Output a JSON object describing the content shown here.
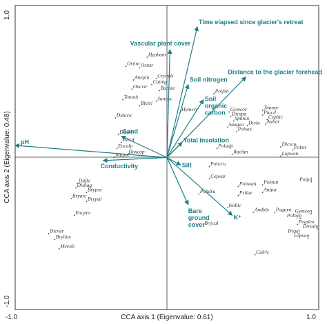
{
  "chart_data": {
    "type": "scatter",
    "subtype": "CCA biplot",
    "xlabel": "CCA axis 1 (Eigenvalue: 0.61)",
    "ylabel": "CCA axis 2 (Eigenvalue: 0.48)",
    "xlim": [
      -1.0,
      1.0
    ],
    "ylim": [
      -1.0,
      1.0
    ],
    "x_ticks": [
      "-1.0",
      "1.0"
    ],
    "y_ticks": [
      "-1.0",
      "1.0"
    ],
    "grid": false,
    "colors": {
      "arrows": "#1d7f86",
      "species": "#333333",
      "frame": "#333333"
    },
    "environmental_vectors": [
      {
        "name": "Time elapsed since glacier's retreat",
        "x": 0.2,
        "y": 0.86
      },
      {
        "name": "Vascular plant cover",
        "x": 0.02,
        "y": 0.71
      },
      {
        "name": "Distance to the glacier forehead",
        "x": 0.52,
        "y": 0.53
      },
      {
        "name": "Soil nitrogen",
        "x": 0.14,
        "y": 0.48
      },
      {
        "name": "Soil organic carbon",
        "x": 0.24,
        "y": 0.38
      },
      {
        "name": "Total insolation",
        "x": 0.1,
        "y": 0.1
      },
      {
        "name": "pH",
        "x": -1.0,
        "y": 0.08
      },
      {
        "name": "Sand",
        "x": -0.3,
        "y": 0.14
      },
      {
        "name": "Conductivity",
        "x": -0.42,
        "y": -0.02
      },
      {
        "name": "Silt",
        "x": 0.09,
        "y": -0.05
      },
      {
        "name": "K⁺",
        "x": 0.43,
        "y": -0.38
      },
      {
        "name": "Bare ground cover",
        "x": 0.14,
        "y": -0.31
      }
    ],
    "species": [
      {
        "name": "Hypbam",
        "x": -0.13,
        "y": 0.66
      },
      {
        "name": "Ortint",
        "x": -0.27,
        "y": 0.6
      },
      {
        "name": "Ortstr",
        "x": -0.18,
        "y": 0.59
      },
      {
        "name": "Cryimb",
        "x": -0.07,
        "y": 0.52
      },
      {
        "name": "Anepin",
        "x": -0.22,
        "y": 0.51
      },
      {
        "name": "Catnig",
        "x": -0.1,
        "y": 0.48
      },
      {
        "name": "Oncvir",
        "x": -0.23,
        "y": 0.45
      },
      {
        "name": "Barhat",
        "x": -0.05,
        "y": 0.44
      },
      {
        "name": "Poljun",
        "x": 0.31,
        "y": 0.42
      },
      {
        "name": "Tomnit",
        "x": -0.29,
        "y": 0.38
      },
      {
        "name": "Sanunc",
        "x": -0.07,
        "y": 0.37
      },
      {
        "name": "Bletri",
        "x": -0.18,
        "y": 0.34
      },
      {
        "name": "Hymcri",
        "x": 0.09,
        "y": 0.3
      },
      {
        "name": "Timnor",
        "x": 0.63,
        "y": 0.31
      },
      {
        "name": "Gymcor",
        "x": 0.41,
        "y": 0.3
      },
      {
        "name": "Ptucil",
        "x": 0.63,
        "y": 0.28
      },
      {
        "name": "Dicspa",
        "x": 0.42,
        "y": 0.27
      },
      {
        "name": "Cepbic",
        "x": 0.66,
        "y": 0.25
      },
      {
        "name": "Sphnin",
        "x": 0.44,
        "y": 0.24
      },
      {
        "name": "Aultur",
        "x": 0.65,
        "y": 0.22
      },
      {
        "name": "Didacu",
        "x": -0.34,
        "y": 0.26
      },
      {
        "name": "Dicla",
        "x": 0.53,
        "y": 0.21
      },
      {
        "name": "Sangeo",
        "x": 0.4,
        "y": 0.2
      },
      {
        "name": "Polsex",
        "x": 0.46,
        "y": 0.17
      },
      {
        "name": "Disinc",
        "x": -0.32,
        "y": 0.15
      },
      {
        "name": "Ditcil",
        "x": -0.3,
        "y": 0.1
      },
      {
        "name": "Encalp",
        "x": -0.33,
        "y": 0.06
      },
      {
        "name": "Doxcap",
        "x": -0.26,
        "y": 0.02
      },
      {
        "name": "Junpol",
        "x": -0.35,
        "y": 0.0
      },
      {
        "name": "Poladp",
        "x": 0.33,
        "y": 0.06
      },
      {
        "name": "Dicsco",
        "x": 0.75,
        "y": 0.07
      },
      {
        "name": "Raclan",
        "x": 0.43,
        "y": 0.02
      },
      {
        "name": "Polstr",
        "x": 0.83,
        "y": 0.05
      },
      {
        "name": "Lopwen",
        "x": 0.75,
        "y": 0.01
      },
      {
        "name": "Pohcru",
        "x": 0.28,
        "y": -0.06
      },
      {
        "name": "Cepvar",
        "x": 0.28,
        "y": -0.14
      },
      {
        "name": "Polpil",
        "x": 0.95,
        "y": -0.16
      },
      {
        "name": "Poknut",
        "x": 0.63,
        "y": -0.18
      },
      {
        "name": "Pohwah",
        "x": 0.47,
        "y": -0.19
      },
      {
        "name": "Ditfle",
        "x": -0.59,
        "y": -0.17
      },
      {
        "name": "Dishag",
        "x": -0.6,
        "y": -0.2
      },
      {
        "name": "Brypse",
        "x": -0.53,
        "y": -0.23
      },
      {
        "name": "Antjur",
        "x": 0.63,
        "y": -0.23
      },
      {
        "name": "Pohdru",
        "x": 0.21,
        "y": -0.24
      },
      {
        "name": "Psilae",
        "x": 0.47,
        "y": -0.25
      },
      {
        "name": "Bryarc",
        "x": -0.63,
        "y": -0.27
      },
      {
        "name": "Brypal",
        "x": -0.53,
        "y": -0.29
      },
      {
        "name": "Isobic",
        "x": 0.4,
        "y": -0.33
      },
      {
        "name": "Andbly",
        "x": 0.57,
        "y": -0.36
      },
      {
        "name": "Pogurn",
        "x": 0.71,
        "y": -0.36
      },
      {
        "name": "Gymcon",
        "x": 0.95,
        "y": -0.37
      },
      {
        "name": "Polhyp",
        "x": 0.88,
        "y": -0.4
      },
      {
        "name": "Encpro",
        "x": -0.61,
        "y": -0.38
      },
      {
        "name": "Pogden",
        "x": 0.86,
        "y": -0.44
      },
      {
        "name": "Dreadu",
        "x": 0.99,
        "y": -0.47
      },
      {
        "name": "Brycal",
        "x": 0.24,
        "y": -0.45
      },
      {
        "name": "Triqui",
        "x": 0.87,
        "y": -0.5
      },
      {
        "name": "Lopven",
        "x": 0.93,
        "y": -0.53
      },
      {
        "name": "Dicvar",
        "x": -0.78,
        "y": -0.5
      },
      {
        "name": "Bryhim",
        "x": -0.74,
        "y": -0.54
      },
      {
        "name": "Meeuli",
        "x": -0.71,
        "y": -0.6
      },
      {
        "name": "Calric",
        "x": 0.58,
        "y": -0.64
      }
    ]
  }
}
